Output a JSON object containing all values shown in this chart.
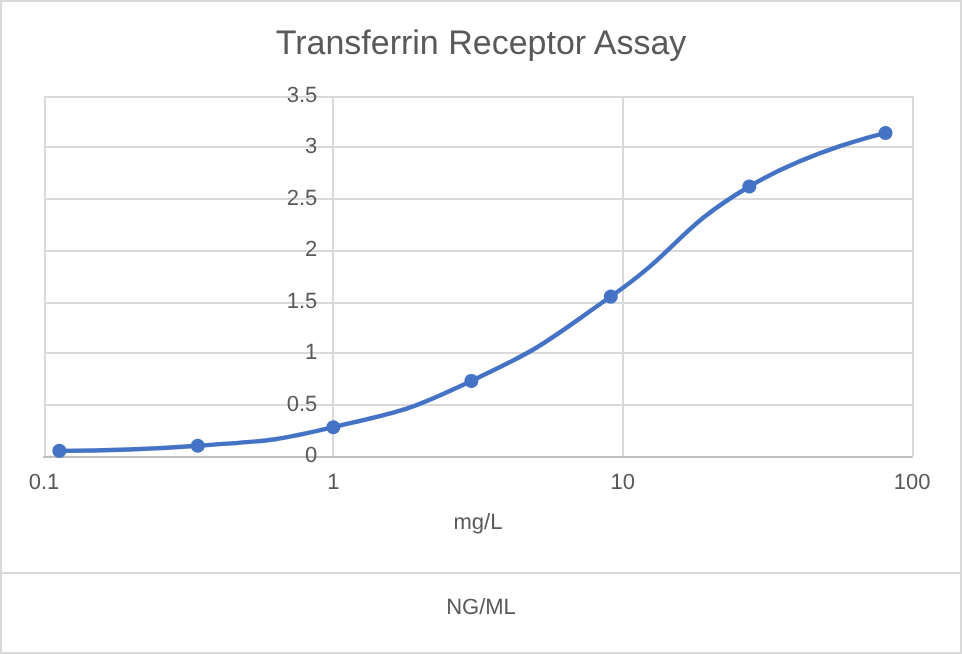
{
  "chart_data": {
    "type": "line",
    "title": "Transferrin Receptor Assay",
    "xlabel": "mg/L",
    "annotations": [
      "NG/ML"
    ],
    "x": [
      0.113,
      0.34,
      1,
      3,
      9.1,
      27.4,
      81
    ],
    "series": [
      {
        "color": "#4472c4",
        "values": [
          0.05,
          0.1,
          0.28,
          0.73,
          1.55,
          2.62,
          3.14
        ]
      }
    ],
    "log": "x",
    "xlim": [
      0.1,
      100
    ],
    "xticks": [
      0.1,
      1,
      10,
      100
    ],
    "ylim": [
      0,
      3.5
    ],
    "yticks": [
      0,
      0.5,
      1,
      1.5,
      2,
      2.5,
      3,
      3.5
    ],
    "grid": true,
    "marker": "circle",
    "line_style": "solid"
  }
}
